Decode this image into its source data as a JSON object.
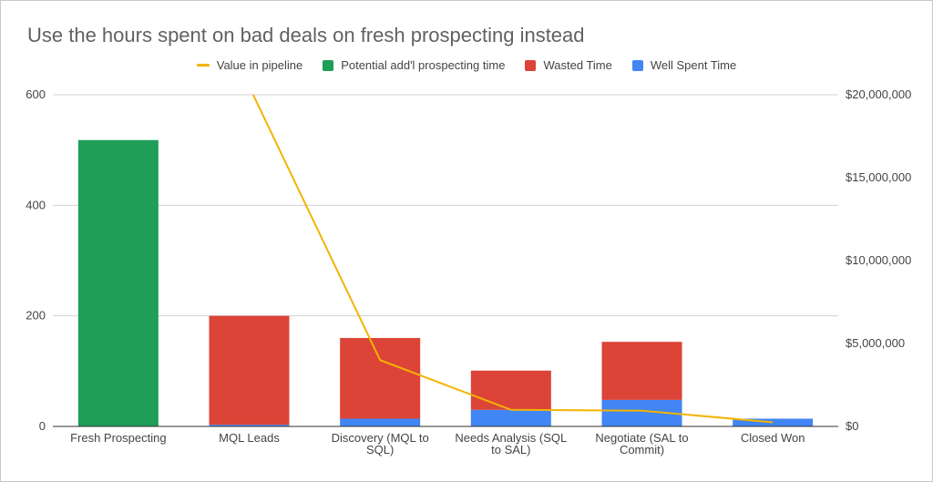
{
  "chart_data": {
    "type": "bar",
    "title": "Use the hours spent on bad deals on fresh prospecting instead",
    "categories": [
      [
        "Fresh Prospecting"
      ],
      [
        "MQL Leads"
      ],
      [
        "Discovery (MQL to",
        "SQL)"
      ],
      [
        "Needs Analysis (SQL",
        "to SAL)"
      ],
      [
        "Negotiate (SAL to",
        "Commit)"
      ],
      [
        "Closed Won"
      ]
    ],
    "stacked": true,
    "series": [
      {
        "name": "Well Spent Time",
        "color": "#4285f4",
        "values": [
          0,
          3,
          14,
          30,
          48,
          14
        ]
      },
      {
        "name": "Wasted Time",
        "color": "#db4437",
        "values": [
          0,
          197,
          146,
          71,
          105,
          0
        ]
      },
      {
        "name": "Potential add'l prospecting time",
        "color": "#1e9e57",
        "values": [
          518,
          0,
          0,
          0,
          0,
          0
        ]
      }
    ],
    "line_series": {
      "name": "Value in pipeline",
      "color": "#f4b400",
      "axis": "right",
      "values": [
        null,
        20500000,
        4000000,
        1000000,
        950000,
        250000
      ]
    },
    "legend_order": [
      "Value in pipeline",
      "Potential add'l prospecting time",
      "Wasted Time",
      "Well Spent Time"
    ],
    "y_left": {
      "min": 0,
      "max": 600,
      "ticks": [
        0,
        200,
        400,
        600
      ],
      "tick_labels": [
        "0",
        "200",
        "400",
        "600"
      ]
    },
    "y_right": {
      "min": 0,
      "max": 20000000,
      "ticks": [
        0,
        5000000,
        10000000,
        15000000,
        20000000
      ],
      "tick_labels": [
        "$0",
        "$5,000,000",
        "$10,000,000",
        "$15,000,000",
        "$20,000,000"
      ]
    },
    "grid": true,
    "legend_position": "top"
  }
}
